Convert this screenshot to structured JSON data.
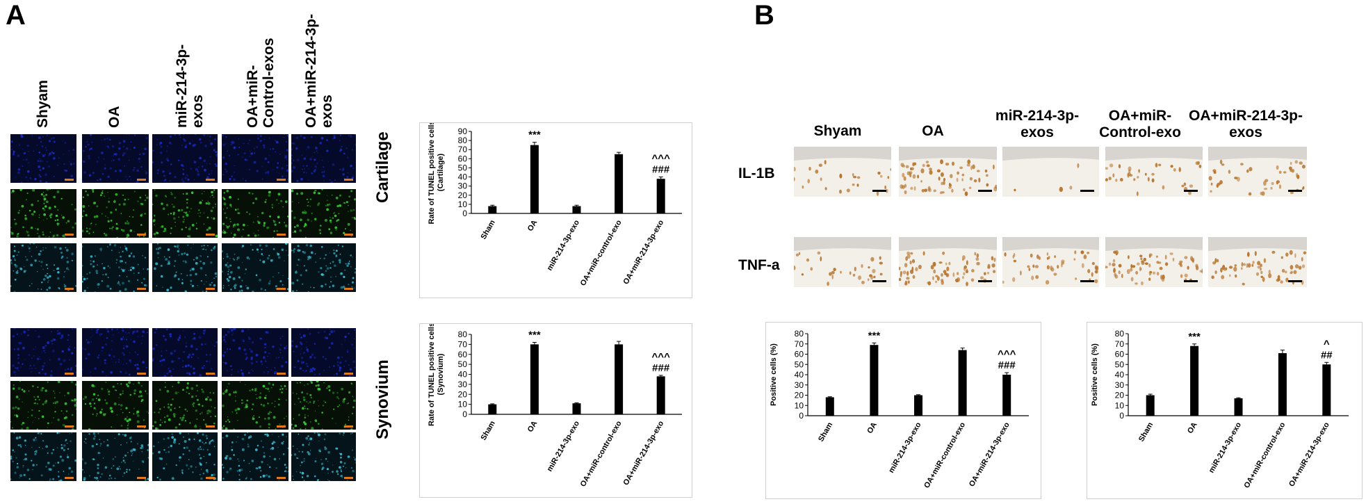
{
  "panels": {
    "a": {
      "letter": "A",
      "col_labels": [
        "Shyam",
        "OA",
        "miR-214-3p-\nexos",
        "OA+miR-\nControl-exos",
        "OA+miR-214-3p-\nexos"
      ],
      "row_labels": [
        "Cartilage",
        "Synovium"
      ]
    },
    "b": {
      "letter": "B",
      "col_labels": [
        "Shyam",
        "OA",
        "miR-214-3p-\nexos",
        "OA+miR-\nControl-exo",
        "OA+miR-214-3p-\nexos"
      ],
      "row_labels": [
        "IL-1B",
        "TNF-a"
      ]
    }
  },
  "colors": {
    "bar": "#000000",
    "scalebar_fluor": "#e07a1a",
    "scalebar_ihc": "#000000",
    "dapi": "#1a2cc9",
    "tunel": "#3bd13b",
    "merge": "#3ac0d6",
    "ihc_bg": "#f3efe9",
    "ihc_stain": "#b7762f"
  },
  "chart_data": [
    {
      "id": "cartilage",
      "type": "bar",
      "ylabel": "Rate of TUNEL positive cells\n(Cartilage)",
      "categories": [
        "Sham",
        "OA",
        "miR-214-3p-exo",
        "OA+miR-control-exo",
        "OA+miR-214-3p-exo"
      ],
      "values": [
        8,
        75,
        8,
        65,
        38
      ],
      "errors": [
        1,
        3,
        1,
        2,
        2
      ],
      "annotations": [
        "",
        "***",
        "",
        "",
        "^^^\n###"
      ],
      "ylim": [
        0,
        90
      ],
      "yticks": [
        0,
        10,
        20,
        30,
        40,
        50,
        60,
        70,
        80,
        90
      ]
    },
    {
      "id": "synovium",
      "type": "bar",
      "ylabel": "Rate of TUNEL positive  cells\n(Synovium)",
      "categories": [
        "Sham",
        "OA",
        "miR-214-3p-exo",
        "OA+miR-control-exo",
        "OA+miR-214-3p-exo"
      ],
      "values": [
        10,
        70,
        11,
        70,
        38
      ],
      "errors": [
        0.5,
        2,
        0.5,
        3,
        1
      ],
      "annotations": [
        "",
        "***",
        "",
        "",
        "^^^\n###"
      ],
      "ylim": [
        0,
        80
      ],
      "yticks": [
        0,
        10,
        20,
        30,
        40,
        50,
        60,
        70,
        80
      ]
    },
    {
      "id": "il1b",
      "type": "bar",
      "ylabel": "Positive cells (%)",
      "categories": [
        "Sham",
        "OA",
        "miR-214-3p-exo",
        "OA+miR-control-exo",
        "OA+miR-214-3p-exo"
      ],
      "values": [
        18,
        69,
        20,
        64,
        40
      ],
      "errors": [
        0.5,
        2,
        0.5,
        2,
        2
      ],
      "annotations": [
        "",
        "***",
        "",
        "",
        "^^^\n###"
      ],
      "ylim": [
        0,
        80
      ],
      "yticks": [
        0,
        10,
        20,
        30,
        40,
        50,
        60,
        70,
        80
      ]
    },
    {
      "id": "tnfa",
      "type": "bar",
      "ylabel": "Positive cells (%)",
      "categories": [
        "Sham",
        "OA",
        "miR-214-3p-exo",
        "OA+miR-control-exo",
        "OA+miR-214-3p-exo"
      ],
      "values": [
        20,
        68,
        17,
        61,
        50
      ],
      "errors": [
        1,
        2,
        0.5,
        3,
        2
      ],
      "annotations": [
        "",
        "***",
        "",
        "",
        "^\n##"
      ],
      "ylim": [
        0,
        80
      ],
      "yticks": [
        0,
        10,
        20,
        30,
        40,
        50,
        60,
        70,
        80
      ]
    }
  ]
}
